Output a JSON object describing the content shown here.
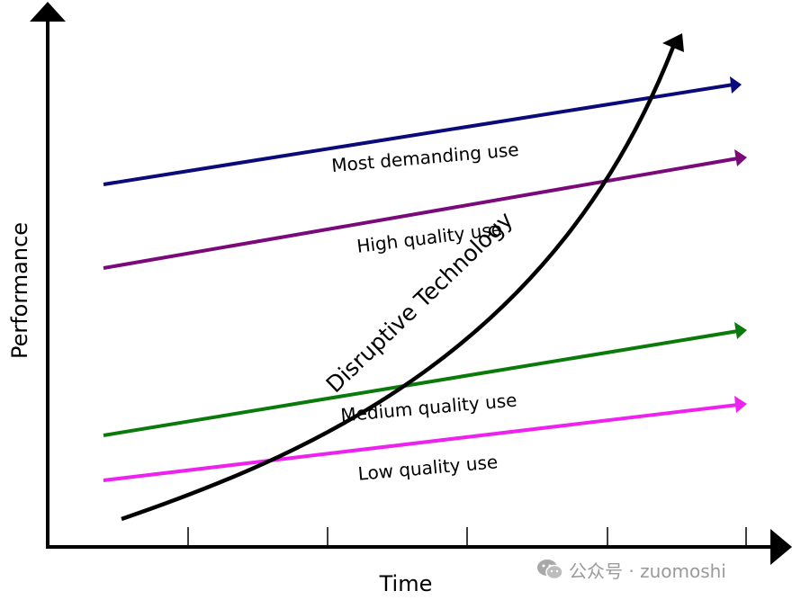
{
  "axes": {
    "x_label": "Time",
    "y_label": "Performance"
  },
  "lines": [
    {
      "id": "most-demanding",
      "label": "Most demanding use",
      "color": "#0a0a7a"
    },
    {
      "id": "high-quality",
      "label": "High quality use",
      "color": "#7a0a7a"
    },
    {
      "id": "medium-quality",
      "label": "Medium quality use",
      "color": "#0a7a0a"
    },
    {
      "id": "low-quality",
      "label": "Low quality use",
      "color": "#ee22ee"
    }
  ],
  "curve": {
    "label": "Disruptive Technology",
    "color": "#000000"
  },
  "watermark": {
    "text": "公众号 · zuomoshi",
    "icon": "wechat-icon"
  }
}
